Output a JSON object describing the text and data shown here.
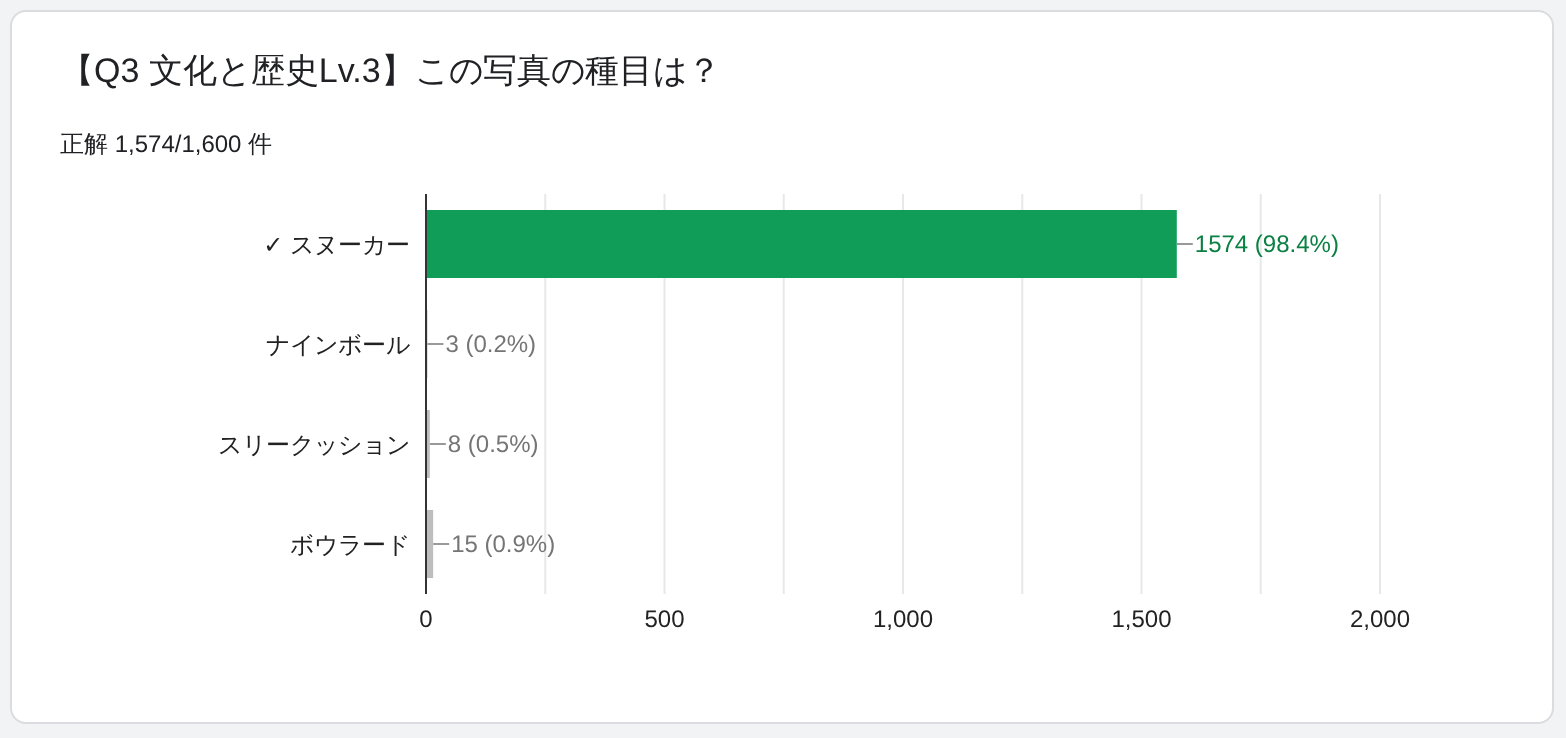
{
  "chart_data": {
    "type": "bar",
    "orientation": "horizontal",
    "title": "【Q3 文化と歴史Lv.3】この写真の種目は？",
    "subtitle": "正解 1,574/1,600 件",
    "categories": [
      "✓ スヌーカー",
      "ナインボール",
      "スリークッション",
      "ボウラード"
    ],
    "values": [
      1574,
      3,
      8,
      15
    ],
    "colors": [
      "#0f9d58",
      "#bdbdbd",
      "#bdbdbd",
      "#bdbdbd"
    ],
    "value_labels": [
      "1574 (98.4%)",
      "3 (0.2%)",
      "8 (0.5%)",
      "15 (0.9%)"
    ],
    "xlim": [
      0,
      2000
    ],
    "xticks": [
      0,
      {
        "value": 250,
        "label": null
      },
      500,
      {
        "value": 750,
        "label": null
      },
      {
        "value": 1000,
        "label": "1,000"
      },
      {
        "value": 1250,
        "label": null
      },
      {
        "value": 1500,
        "label": "1,500"
      },
      {
        "value": 1750,
        "label": null
      },
      {
        "value": 2000,
        "label": "2,000"
      }
    ],
    "grid": "x"
  }
}
